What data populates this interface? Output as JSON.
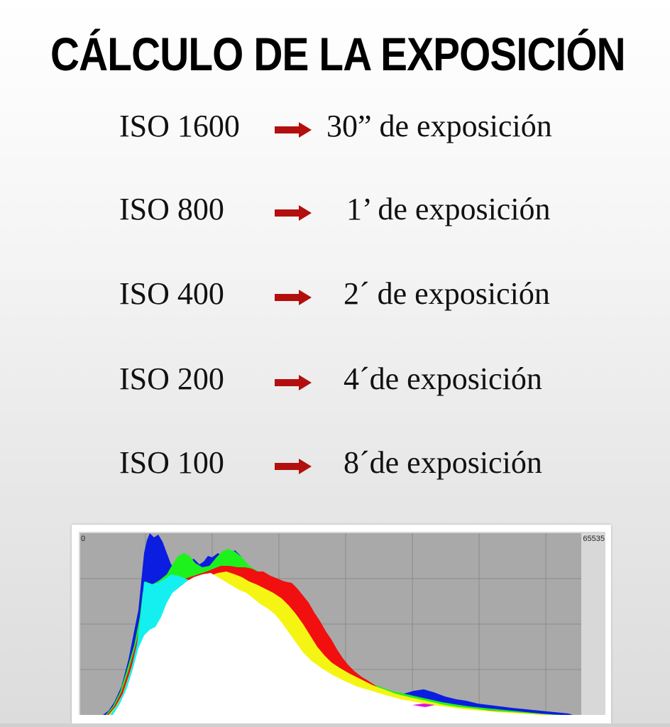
{
  "title": "CÁLCULO DE LA EXPOSICIÓN",
  "rows": [
    {
      "iso": "ISO 1600",
      "exposure": "30” de exposición"
    },
    {
      "iso": "ISO 800",
      "exposure": "1’ de exposición"
    },
    {
      "iso": "ISO 400",
      "exposure": "2´ de exposición"
    },
    {
      "iso": "ISO 200",
      "exposure": "4´de exposición"
    },
    {
      "iso": "ISO 100",
      "exposure": "8´de exposición"
    }
  ],
  "arrow_icon": "right-arrow-icon",
  "arrow_color": "#b30f0f",
  "histogram": {
    "min_label": "0",
    "max_label": "65535"
  }
}
